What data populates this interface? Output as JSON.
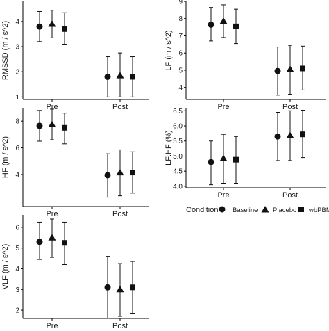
{
  "legend": {
    "title": "Condition",
    "items": [
      {
        "label": "Baseline",
        "shape": "circle"
      },
      {
        "label": "Placebo",
        "shape": "triangle"
      },
      {
        "label": "wbPBM",
        "shape": "square"
      }
    ]
  },
  "colors": {
    "mark": "#111111",
    "axis": "#000000",
    "text": "#1a1a1a"
  },
  "chart_data": [
    {
      "type": "scatter",
      "ylabel": "RMSSD (m / s^2)",
      "categories": [
        "Pre",
        "Post"
      ],
      "ylim": [
        0.9,
        4.8
      ],
      "yticks": [
        1,
        2,
        3,
        4
      ],
      "series": [
        {
          "name": "Baseline",
          "values": [
            3.8,
            1.8
          ],
          "err_low": [
            3.2,
            1.0
          ],
          "err_high": [
            4.4,
            2.6
          ]
        },
        {
          "name": "Placebo",
          "values": [
            3.9,
            1.85
          ],
          "err_low": [
            3.35,
            1.0
          ],
          "err_high": [
            4.45,
            2.75
          ]
        },
        {
          "name": "wbPBM",
          "values": [
            3.7,
            1.8
          ],
          "err_low": [
            3.1,
            1.0
          ],
          "err_high": [
            4.35,
            2.6
          ]
        }
      ]
    },
    {
      "type": "scatter",
      "ylabel": "LF (m / s^2)",
      "categories": [
        "Pre",
        "Post"
      ],
      "ylim": [
        3.3,
        9.0
      ],
      "yticks": [
        4,
        5,
        6,
        7,
        8,
        9
      ],
      "series": [
        {
          "name": "Baseline",
          "values": [
            7.65,
            4.95
          ],
          "err_low": [
            6.7,
            3.55
          ],
          "err_high": [
            8.65,
            6.35
          ]
        },
        {
          "name": "Placebo",
          "values": [
            7.85,
            5.05
          ],
          "err_low": [
            6.9,
            3.6
          ],
          "err_high": [
            8.8,
            6.45
          ]
        },
        {
          "name": "wbPBM",
          "values": [
            7.55,
            5.1
          ],
          "err_low": [
            6.55,
            3.85
          ],
          "err_high": [
            8.55,
            6.4
          ]
        }
      ]
    },
    {
      "type": "scatter",
      "ylabel": "HF (m / s^2)",
      "categories": [
        "Pre",
        "Post"
      ],
      "ylim": [
        1.6,
        9.0
      ],
      "yticks": [
        4,
        6,
        8
      ],
      "series": [
        {
          "name": "Baseline",
          "values": [
            7.65,
            3.95
          ],
          "err_low": [
            6.5,
            2.3
          ],
          "err_high": [
            8.8,
            5.55
          ]
        },
        {
          "name": "Placebo",
          "values": [
            7.75,
            4.15
          ],
          "err_low": [
            6.6,
            2.4
          ],
          "err_high": [
            8.9,
            5.85
          ]
        },
        {
          "name": "wbPBM",
          "values": [
            7.5,
            4.15
          ],
          "err_low": [
            6.3,
            2.6
          ],
          "err_high": [
            8.6,
            5.7
          ]
        }
      ]
    },
    {
      "type": "scatter",
      "ylabel": "LF:HF (%)",
      "categories": [
        "Pre",
        "Post"
      ],
      "ylim": [
        3.95,
        6.6
      ],
      "yticks": [
        4.0,
        4.5,
        5.0,
        5.5,
        6.0,
        6.5
      ],
      "tick_decimals": 1,
      "series": [
        {
          "name": "Baseline",
          "values": [
            4.8,
            5.65
          ],
          "err_low": [
            4.05,
            4.85
          ],
          "err_high": [
            5.5,
            6.45
          ]
        },
        {
          "name": "Placebo",
          "values": [
            4.92,
            5.68
          ],
          "err_low": [
            4.1,
            4.85
          ],
          "err_high": [
            5.72,
            6.5
          ]
        },
        {
          "name": "wbPBM",
          "values": [
            4.88,
            5.72
          ],
          "err_low": [
            4.1,
            4.95
          ],
          "err_high": [
            5.65,
            6.52
          ]
        }
      ]
    },
    {
      "type": "scatter",
      "ylabel": "VLF (m / s^2)",
      "categories": [
        "Pre",
        "Post"
      ],
      "ylim": [
        1.6,
        6.6
      ],
      "yticks": [
        2,
        3,
        4,
        5,
        6
      ],
      "series": [
        {
          "name": "Baseline",
          "values": [
            5.3,
            3.1
          ],
          "err_low": [
            4.45,
            1.6
          ],
          "err_high": [
            6.25,
            4.6
          ]
        },
        {
          "name": "Placebo",
          "values": [
            5.5,
            3.0
          ],
          "err_low": [
            4.55,
            1.7
          ],
          "err_high": [
            6.4,
            4.25
          ]
        },
        {
          "name": "wbPBM",
          "values": [
            5.25,
            3.1
          ],
          "err_low": [
            4.2,
            1.85
          ],
          "err_high": [
            6.25,
            4.35
          ]
        }
      ]
    }
  ]
}
